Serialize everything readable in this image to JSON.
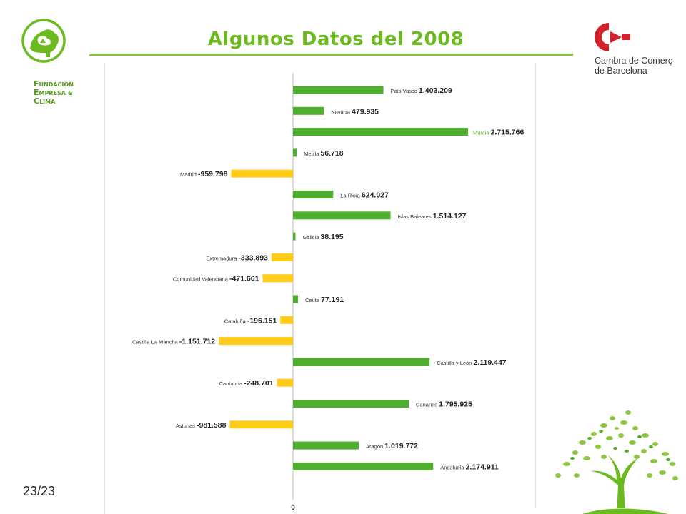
{
  "slide": {
    "title": "Algunos Datos del 2008",
    "page_number": "23/23",
    "logo_left": {
      "line1": "UNDACIÓN",
      "line2": "MPRESA &",
      "line3": "LIMA",
      "cap1": "F",
      "cap2": "E",
      "cap3": "C"
    },
    "logo_right": {
      "line1": "Cambra de Comerç",
      "line2": "de Barcelona"
    }
  },
  "colors": {
    "positive": "#4fae2e",
    "negative": "#ffcc1a",
    "title": "#6cbb1e",
    "brand_red": "#d2232a"
  },
  "chart_data": {
    "type": "bar",
    "orientation": "horizontal",
    "zero_label": "0",
    "categories": [
      "País Vasco",
      "Navarra",
      "Murcia",
      "Melilla",
      "Madrid",
      "La Rioja",
      "Islas Baleares",
      "Galicia",
      "Extremadura",
      "Comunidad Valenciana",
      "Ceuta",
      "Cataluña",
      "Castilla La Mancha",
      "Castilla y León",
      "Cantabria",
      "Canarias",
      "Asturias",
      "Aragón",
      "Andalucía"
    ],
    "values": [
      1403209,
      479935,
      2715766,
      56718,
      -959798,
      624027,
      1514127,
      38195,
      -333893,
      -471661,
      77191,
      -196151,
      -1151712,
      2119447,
      -248701,
      1795925,
      -981588,
      1019772,
      2174911
    ],
    "value_labels": [
      "1.403.209",
      "479.935",
      "2.715.766",
      "56.718",
      "-959.798",
      "624.027",
      "1.514.127",
      "38.195",
      "-333.893",
      "-471.661",
      "77.191",
      "-196.151",
      "-1.151.712",
      "2.119.447",
      "-248.701",
      "1.795.925",
      "-981.588",
      "1.019.772",
      "2.174.911"
    ]
  }
}
